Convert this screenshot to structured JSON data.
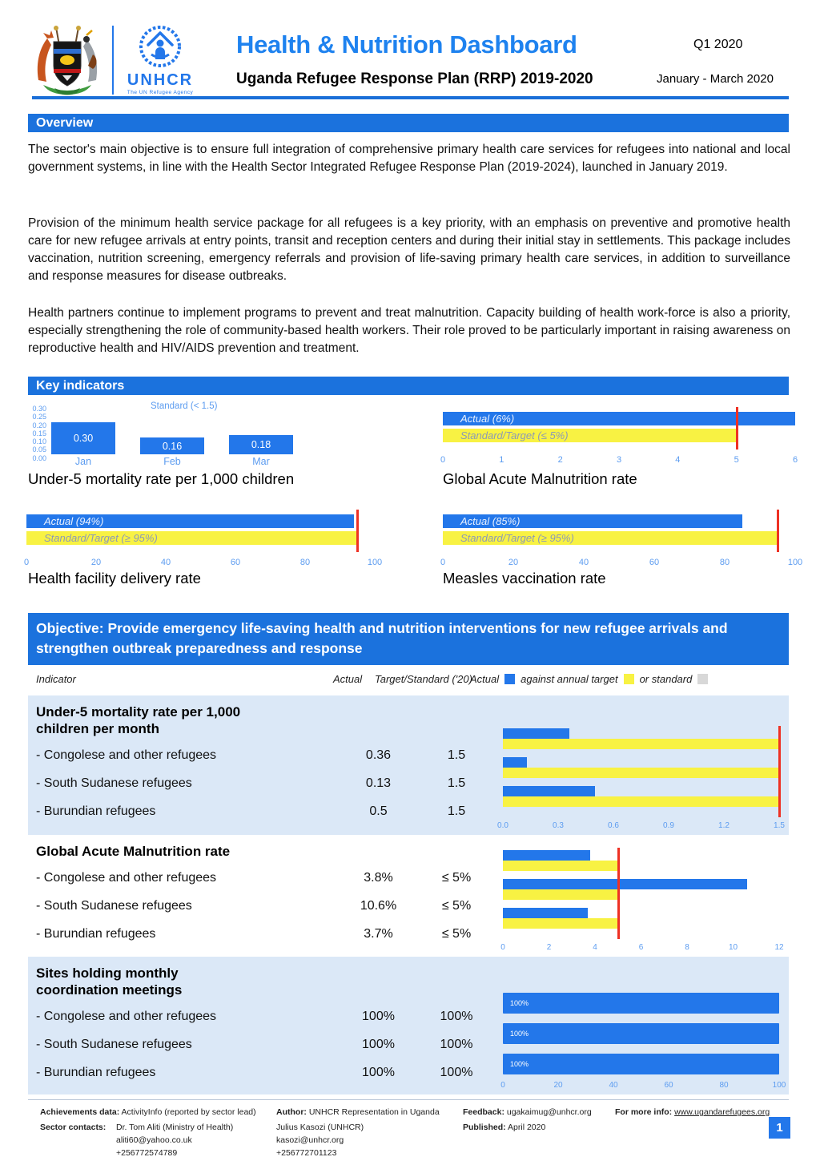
{
  "header": {
    "title": "Health & Nutrition Dashboard",
    "subtitle": "Uganda Refugee Response Plan (RRP) 2019-2020",
    "quarter": "Q1 2020",
    "period": "January - March 2020",
    "unhcr_logo_text": "UNHCR",
    "unhcr_logo_subtext": "The UN Refugee Agency"
  },
  "overview": {
    "heading": "Overview",
    "paragraphs": [
      "The sector's main objective is to ensure full integration of comprehensive primary health care services for refugees into national and local government systems, in line with the Health Sector Integrated Refugee Response Plan (2019-2024), launched in January 2019.",
      "Provision of the minimum health service package for all refugees is a key priority, with an emphasis on preventive and promotive health care for new refugee arrivals at entry points, transit and reception centers and during their initial stay in settlements. This package includes vaccination, nutrition screening, emergency referrals and provision of life-saving primary health care services, in addition to surveillance and response measures for disease outbreaks.",
      "Health partners continue to implement programs to prevent and treat malnutrition. Capacity building of health work-force is also a priority, especially strengthening the role of community-based health workers. Their role proved to be particularly important in raising awareness on reproductive health and HIV/AIDS prevention and treatment."
    ]
  },
  "key_indicators": {
    "heading": "Key indicators",
    "under5": {
      "standard_label": "Standard (< 1.5)",
      "months": [
        "Jan",
        "Feb",
        "Mar"
      ],
      "values": [
        0.3,
        0.16,
        0.18
      ],
      "value_labels": [
        "0.30",
        "0.16",
        "0.18"
      ],
      "y_ticks": [
        "0.30",
        "0.25",
        "0.20",
        "0.15",
        "0.10",
        "0.05",
        "0.00"
      ],
      "title": "Under-5 mortality rate per 1,000 children"
    },
    "gam": {
      "actual_label": "Actual (6%)",
      "target_label": "Standard/Target (≤ 5%)",
      "actual": 6,
      "target": 5,
      "max": 6,
      "x_ticks": [
        "0",
        "1",
        "2",
        "3",
        "4",
        "5",
        "6"
      ],
      "title": "Global Acute Malnutrition rate"
    },
    "delivery": {
      "actual_label": "Actual (94%)",
      "target_label": "Standard/Target (≥ 95%)",
      "actual": 94,
      "target": 95,
      "max": 100,
      "x_ticks": [
        "0",
        "20",
        "40",
        "60",
        "80",
        "100"
      ],
      "title": "Health facility delivery rate"
    },
    "measles": {
      "actual_label": "Actual (85%)",
      "target_label": "Standard/Target (≥ 95%)",
      "actual": 85,
      "target": 95,
      "max": 100,
      "x_ticks": [
        "0",
        "20",
        "40",
        "60",
        "80",
        "100"
      ],
      "title": "Measles vaccination rate"
    }
  },
  "objective": {
    "heading": "Objective: Provide emergency life-saving health and nutrition interventions for new refugee arrivals and strengthen outbreak preparedness and response",
    "columns": {
      "indicator": "Indicator",
      "actual": "Actual",
      "target": "Target/Standard ('20)"
    },
    "legend": {
      "actual": "Actual",
      "against": "against annual target",
      "or_standard": "or standard"
    },
    "sections": [
      {
        "title_lines": [
          "Under-5 mortality rate per 1,000",
          "children per month"
        ],
        "shaded": true,
        "rows": [
          {
            "label": "- Congolese and other refugees",
            "actual": "0.36",
            "target": "1.5",
            "actual_value": 0.36,
            "target_value": 1.5
          },
          {
            "label": "- South Sudanese refugees",
            "actual": "0.13",
            "target": "1.5",
            "actual_value": 0.13,
            "target_value": 1.5
          },
          {
            "label": "- Burundian refugees",
            "actual": "0.5",
            "target": "1.5",
            "actual_value": 0.5,
            "target_value": 1.5
          }
        ],
        "chart": {
          "style": "pair",
          "max": 1.5,
          "redline": 1.5,
          "ticks": [
            "0.0",
            "0.3",
            "0.6",
            "0.9",
            "1.2",
            "1.5"
          ]
        }
      },
      {
        "title_lines": [
          "Global Acute Malnutrition rate"
        ],
        "shaded": false,
        "rows": [
          {
            "label": "- Congolese and other refugees",
            "actual": "3.8%",
            "target": "≤ 5%",
            "actual_value": 3.8,
            "target_value": 5
          },
          {
            "label": "- South Sudanese refugees",
            "actual": "10.6%",
            "target": "≤ 5%",
            "actual_value": 10.6,
            "target_value": 5
          },
          {
            "label": "- Burundian refugees",
            "actual": "3.7%",
            "target": "≤ 5%",
            "actual_value": 3.7,
            "target_value": 5
          }
        ],
        "chart": {
          "style": "pair",
          "max": 12,
          "redline": 5,
          "ticks": [
            "0",
            "2",
            "4",
            "6",
            "8",
            "10",
            "12"
          ]
        }
      },
      {
        "title_lines": [
          "Sites holding monthly",
          "coordination meetings"
        ],
        "shaded": true,
        "rows": [
          {
            "label": "- Congolese and other refugees",
            "actual": "100%",
            "target": "100%",
            "actual_value": 100,
            "target_value": 100,
            "bar_label": "100%"
          },
          {
            "label": "- South Sudanese refugees",
            "actual": "100%",
            "target": "100%",
            "actual_value": 100,
            "target_value": 100,
            "bar_label": "100%"
          },
          {
            "label": "- Burundian refugees",
            "actual": "100%",
            "target": "100%",
            "actual_value": 100,
            "target_value": 100,
            "bar_label": "100%"
          }
        ],
        "chart": {
          "style": "single",
          "max": 100,
          "redline": null,
          "ticks": [
            "0",
            "20",
            "40",
            "60",
            "80",
            "100"
          ]
        }
      }
    ]
  },
  "footer": {
    "achievements_label": "Achievements data:",
    "achievements": "ActivityInfo (reported by sector lead)",
    "author_label": "Author:",
    "author": "UNHCR Representation in Uganda",
    "feedback_label": "Feedback:",
    "feedback": "ugakaimug@unhcr.org",
    "more_info_label": "For more info:",
    "more_info": "www.ugandarefugees.org",
    "sector_contacts_label": "Sector contacts:",
    "contact1": {
      "name": "Dr. Tom Aliti (Ministry of Health)",
      "email": "aliti60@yahoo.co.uk",
      "phone": "+256772574789"
    },
    "contact2": {
      "name": "Julius Kasozi (UNHCR)",
      "email": "kasozi@unhcr.org",
      "phone": "+256772701123"
    },
    "published_label": "Published:",
    "published": "April 2020",
    "page_number": "1"
  },
  "colors": {
    "accent_blue": "#1B72DD",
    "bar_blue": "#2377EA",
    "target_yellow": "#F8F243",
    "redline_red": "#EE3124",
    "band_light_blue": "#DBE8F7",
    "axis_blue": "#5C9CF0"
  },
  "chart_data": [
    {
      "type": "bar",
      "title": "Under-5 mortality rate per 1,000 children",
      "annotation": "Standard (< 1.5)",
      "categories": [
        "Jan",
        "Feb",
        "Mar"
      ],
      "values": [
        0.3,
        0.16,
        0.18
      ],
      "ylim": [
        0,
        0.3
      ],
      "y_ticks": [
        0.3,
        0.25,
        0.2,
        0.15,
        0.1,
        0.05,
        0.0
      ],
      "legend_position": "none",
      "grid": false
    },
    {
      "type": "bar",
      "orientation": "horizontal",
      "title": "Global Acute Malnutrition rate",
      "series": [
        {
          "name": "Actual (6%)",
          "values": [
            6
          ]
        },
        {
          "name": "Standard/Target (≤ 5%)",
          "values": [
            5
          ]
        }
      ],
      "xlim": [
        0,
        6
      ],
      "redline": 5
    },
    {
      "type": "bar",
      "orientation": "horizontal",
      "title": "Health facility delivery rate",
      "series": [
        {
          "name": "Actual (94%)",
          "values": [
            94
          ]
        },
        {
          "name": "Standard/Target (≥ 95%)",
          "values": [
            95
          ]
        }
      ],
      "xlim": [
        0,
        100
      ],
      "redline": 95
    },
    {
      "type": "bar",
      "orientation": "horizontal",
      "title": "Measles vaccination rate",
      "series": [
        {
          "name": "Actual (85%)",
          "values": [
            85
          ]
        },
        {
          "name": "Standard/Target (≥ 95%)",
          "values": [
            95
          ]
        }
      ],
      "xlim": [
        0,
        100
      ],
      "redline": 95
    },
    {
      "type": "bar",
      "orientation": "horizontal",
      "title": "Under-5 mortality rate per 1,000 children per month",
      "categories": [
        "Congolese and other refugees",
        "South Sudanese refugees",
        "Burundian refugees"
      ],
      "series": [
        {
          "name": "Actual",
          "values": [
            0.36,
            0.13,
            0.5
          ]
        },
        {
          "name": "Target/Standard",
          "values": [
            1.5,
            1.5,
            1.5
          ]
        }
      ],
      "xlim": [
        0,
        1.5
      ],
      "redline": 1.5
    },
    {
      "type": "bar",
      "orientation": "horizontal",
      "title": "Global Acute Malnutrition rate",
      "categories": [
        "Congolese and other refugees",
        "South Sudanese refugees",
        "Burundian refugees"
      ],
      "series": [
        {
          "name": "Actual",
          "values": [
            3.8,
            10.6,
            3.7
          ]
        },
        {
          "name": "Target/Standard",
          "values": [
            5,
            5,
            5
          ]
        }
      ],
      "xlim": [
        0,
        12
      ],
      "redline": 5
    },
    {
      "type": "bar",
      "orientation": "horizontal",
      "title": "Sites holding monthly coordination meetings",
      "categories": [
        "Congolese and other refugees",
        "South Sudanese refugees",
        "Burundian refugees"
      ],
      "series": [
        {
          "name": "Actual",
          "values": [
            100,
            100,
            100
          ]
        }
      ],
      "xlim": [
        0,
        100
      ],
      "bar_labels": [
        "100%",
        "100%",
        "100%"
      ]
    }
  ]
}
